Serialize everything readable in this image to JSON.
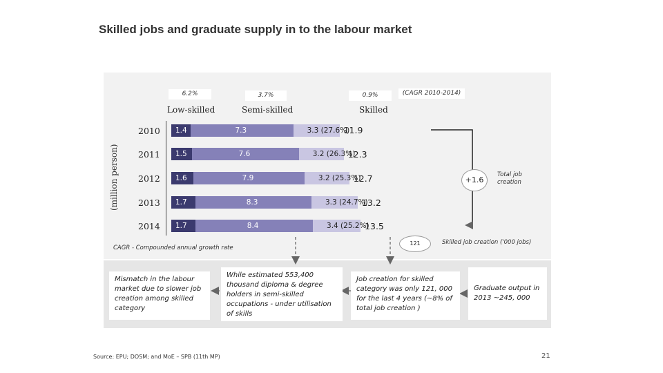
{
  "title": "Skilled jobs and graduate supply in to the labour market",
  "ylabel": "(million person)",
  "cagr_period": "(CAGR 2010-2014)",
  "chart_data": {
    "type": "bar",
    "orientation": "horizontal",
    "stacked": true,
    "title": "Skilled jobs and graduate supply in to the labour market",
    "ylabel": "(million person)",
    "categories": [
      "2010",
      "2011",
      "2012",
      "2013",
      "2014"
    ],
    "series": [
      {
        "name": "Low-skilled",
        "values": [
          1.4,
          1.5,
          1.6,
          1.7,
          1.7
        ],
        "labels": [
          "1.4",
          "1.5",
          "1.6",
          "1.7",
          "1.7"
        ],
        "cagr": "6.2%",
        "color": "#3b3a6e"
      },
      {
        "name": "Semi-skilled",
        "values": [
          7.3,
          7.6,
          7.9,
          8.3,
          8.4
        ],
        "labels": [
          "7.3",
          "7.6",
          "7.9",
          "8.3",
          "8.4"
        ],
        "cagr": "3.7%",
        "color": "#8581b8"
      },
      {
        "name": "Skilled",
        "values": [
          3.3,
          3.2,
          3.2,
          3.3,
          3.4
        ],
        "labels": [
          "3.3 (27.6%)",
          "3.2 (26.3%)",
          "3.2 (25.3%)",
          "3.3 (24.7%)",
          "3.4 (25.2%)"
        ],
        "cagr": "0.9%",
        "color": "#c9c6e2"
      }
    ],
    "totals": [
      "11.9",
      "12.3",
      "12.7",
      "13.2",
      "13.5"
    ]
  },
  "annotations": {
    "total_change": "+1.6",
    "total_change_label": "Total job creation",
    "skilled_jobs_created": "121",
    "skilled_jobs_label": "Skilled job creation ('000 jobs)",
    "cagr_note": "CAGR - Compounded annual growth rate"
  },
  "boxes": {
    "mismatch": "Mismatch in the labour market due to slower job creation among skilled category",
    "underutilisation": "While estimated 553,400 thousand diploma & degree holders in semi-skilled occupations - under utilisation of skills",
    "job_creation": "Job creation for skilled category was only 121, 000 for the last 4 years (~8% of total job creation )",
    "graduate_output": "Graduate output in 2013 ~245, 000"
  },
  "source_text": "Source: EPU; DOSM; and MoE – SPB (11th MP)",
  "page_number": "21"
}
